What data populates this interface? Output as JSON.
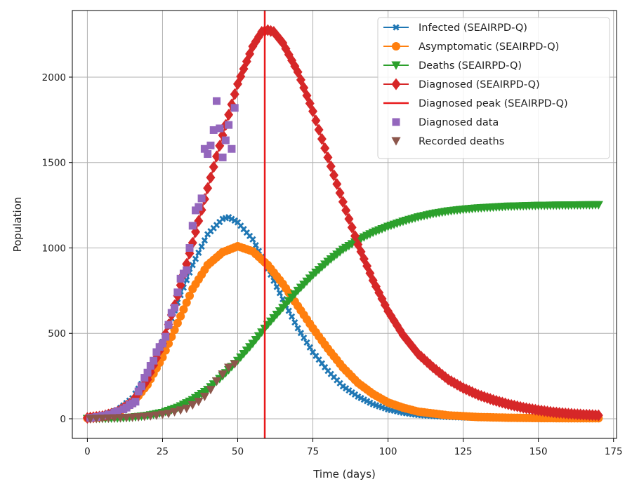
{
  "chart_data": {
    "type": "line",
    "xlabel": "Time (days)",
    "ylabel": "Population",
    "xlim": [
      -5,
      176
    ],
    "ylim": [
      -115,
      2390
    ],
    "xticks": [
      0,
      25,
      50,
      75,
      100,
      125,
      150,
      175
    ],
    "yticks": [
      0,
      500,
      1000,
      1500,
      2000
    ],
    "grid": true,
    "legend_position": "top-right",
    "series": [
      {
        "name": "Infected (SEAIRPD-Q)",
        "type": "line",
        "marker": "x",
        "color": "#1f77b4",
        "points": [
          [
            0,
            5
          ],
          [
            5,
            18
          ],
          [
            10,
            50
          ],
          [
            15,
            120
          ],
          [
            20,
            260
          ],
          [
            25,
            450
          ],
          [
            30,
            680
          ],
          [
            35,
            900
          ],
          [
            40,
            1080
          ],
          [
            45,
            1170
          ],
          [
            47,
            1180
          ],
          [
            50,
            1150
          ],
          [
            55,
            1050
          ],
          [
            60,
            880
          ],
          [
            65,
            700
          ],
          [
            70,
            530
          ],
          [
            75,
            390
          ],
          [
            80,
            280
          ],
          [
            85,
            190
          ],
          [
            90,
            130
          ],
          [
            95,
            85
          ],
          [
            100,
            55
          ],
          [
            105,
            35
          ],
          [
            110,
            22
          ],
          [
            120,
            10
          ],
          [
            130,
            5
          ],
          [
            140,
            3
          ],
          [
            150,
            2
          ],
          [
            160,
            1
          ],
          [
            170,
            1
          ]
        ]
      },
      {
        "name": "Asymptomatic (SEAIRPD-Q)",
        "type": "line",
        "marker": "o",
        "color": "#ff7f0e",
        "points": [
          [
            0,
            3
          ],
          [
            5,
            12
          ],
          [
            10,
            35
          ],
          [
            15,
            90
          ],
          [
            20,
            200
          ],
          [
            25,
            360
          ],
          [
            30,
            560
          ],
          [
            35,
            760
          ],
          [
            40,
            900
          ],
          [
            45,
            975
          ],
          [
            50,
            1010
          ],
          [
            55,
            980
          ],
          [
            60,
            900
          ],
          [
            65,
            790
          ],
          [
            70,
            660
          ],
          [
            75,
            530
          ],
          [
            80,
            410
          ],
          [
            85,
            300
          ],
          [
            90,
            210
          ],
          [
            95,
            145
          ],
          [
            100,
            95
          ],
          [
            105,
            65
          ],
          [
            110,
            42
          ],
          [
            120,
            20
          ],
          [
            130,
            10
          ],
          [
            140,
            6
          ],
          [
            150,
            4
          ],
          [
            160,
            3
          ],
          [
            170,
            3
          ]
        ]
      },
      {
        "name": "Deaths (SEAIRPD-Q)",
        "type": "line",
        "marker": "v",
        "color": "#2ca02c",
        "points": [
          [
            0,
            0
          ],
          [
            5,
            1
          ],
          [
            10,
            3
          ],
          [
            15,
            8
          ],
          [
            20,
            18
          ],
          [
            25,
            35
          ],
          [
            30,
            65
          ],
          [
            35,
            110
          ],
          [
            40,
            170
          ],
          [
            45,
            250
          ],
          [
            50,
            340
          ],
          [
            55,
            440
          ],
          [
            60,
            550
          ],
          [
            65,
            650
          ],
          [
            70,
            750
          ],
          [
            75,
            840
          ],
          [
            80,
            920
          ],
          [
            85,
            990
          ],
          [
            90,
            1045
          ],
          [
            95,
            1090
          ],
          [
            100,
            1125
          ],
          [
            105,
            1155
          ],
          [
            110,
            1180
          ],
          [
            115,
            1200
          ],
          [
            120,
            1215
          ],
          [
            125,
            1225
          ],
          [
            130,
            1233
          ],
          [
            140,
            1243
          ],
          [
            150,
            1248
          ],
          [
            160,
            1250
          ],
          [
            170,
            1252
          ]
        ]
      },
      {
        "name": "Diagnosed (SEAIRPD-Q)",
        "type": "line",
        "marker": "D",
        "color": "#d62728",
        "points": [
          [
            0,
            5
          ],
          [
            5,
            15
          ],
          [
            10,
            40
          ],
          [
            15,
            100
          ],
          [
            20,
            230
          ],
          [
            25,
            440
          ],
          [
            30,
            720
          ],
          [
            35,
            1030
          ],
          [
            40,
            1350
          ],
          [
            45,
            1660
          ],
          [
            50,
            1960
          ],
          [
            55,
            2180
          ],
          [
            58,
            2265
          ],
          [
            60,
            2275
          ],
          [
            62,
            2265
          ],
          [
            65,
            2200
          ],
          [
            70,
            2030
          ],
          [
            75,
            1800
          ],
          [
            80,
            1530
          ],
          [
            85,
            1270
          ],
          [
            90,
            1020
          ],
          [
            95,
            810
          ],
          [
            100,
            630
          ],
          [
            105,
            490
          ],
          [
            110,
            380
          ],
          [
            115,
            300
          ],
          [
            120,
            230
          ],
          [
            125,
            180
          ],
          [
            130,
            140
          ],
          [
            135,
            110
          ],
          [
            140,
            85
          ],
          [
            145,
            65
          ],
          [
            150,
            50
          ],
          [
            155,
            38
          ],
          [
            160,
            30
          ],
          [
            165,
            24
          ],
          [
            170,
            20
          ]
        ]
      },
      {
        "name": "Diagnosed peak (SEAIRPD-Q)",
        "type": "vline",
        "color": "#e8191b",
        "x": 59
      },
      {
        "name": "Diagnosed data",
        "type": "scatter",
        "marker": "s",
        "color": "#9467bd",
        "points": [
          [
            1,
            5
          ],
          [
            3,
            10
          ],
          [
            5,
            18
          ],
          [
            7,
            25
          ],
          [
            9,
            35
          ],
          [
            10,
            45
          ],
          [
            12,
            55
          ],
          [
            13,
            65
          ],
          [
            14,
            80
          ],
          [
            15,
            90
          ],
          [
            16,
            100
          ],
          [
            17,
            160
          ],
          [
            18,
            190
          ],
          [
            19,
            240
          ],
          [
            20,
            270
          ],
          [
            21,
            310
          ],
          [
            22,
            340
          ],
          [
            23,
            390
          ],
          [
            24,
            420
          ],
          [
            25,
            440
          ],
          [
            26,
            480
          ],
          [
            27,
            550
          ],
          [
            28,
            620
          ],
          [
            29,
            650
          ],
          [
            30,
            740
          ],
          [
            31,
            820
          ],
          [
            32,
            850
          ],
          [
            33,
            870
          ],
          [
            34,
            1000
          ],
          [
            35,
            1130
          ],
          [
            36,
            1220
          ],
          [
            37,
            1240
          ],
          [
            38,
            1290
          ],
          [
            39,
            1580
          ],
          [
            40,
            1550
          ],
          [
            41,
            1600
          ],
          [
            42,
            1690
          ],
          [
            43,
            1860
          ],
          [
            44,
            1700
          ],
          [
            45,
            1530
          ],
          [
            46,
            1630
          ],
          [
            47,
            1720
          ],
          [
            48,
            1580
          ],
          [
            49,
            1820
          ]
        ]
      },
      {
        "name": "Recorded deaths",
        "type": "scatter",
        "marker": "v",
        "color": "#8c564b",
        "points": [
          [
            1,
            0
          ],
          [
            3,
            1
          ],
          [
            5,
            2
          ],
          [
            7,
            3
          ],
          [
            9,
            4
          ],
          [
            11,
            5
          ],
          [
            13,
            6
          ],
          [
            15,
            8
          ],
          [
            17,
            10
          ],
          [
            19,
            13
          ],
          [
            21,
            16
          ],
          [
            23,
            20
          ],
          [
            25,
            25
          ],
          [
            27,
            30
          ],
          [
            29,
            40
          ],
          [
            31,
            50
          ],
          [
            33,
            60
          ],
          [
            35,
            80
          ],
          [
            37,
            100
          ],
          [
            39,
            130
          ],
          [
            41,
            170
          ],
          [
            43,
            220
          ],
          [
            45,
            260
          ],
          [
            47,
            300
          ],
          [
            49,
            320
          ]
        ]
      }
    ]
  }
}
